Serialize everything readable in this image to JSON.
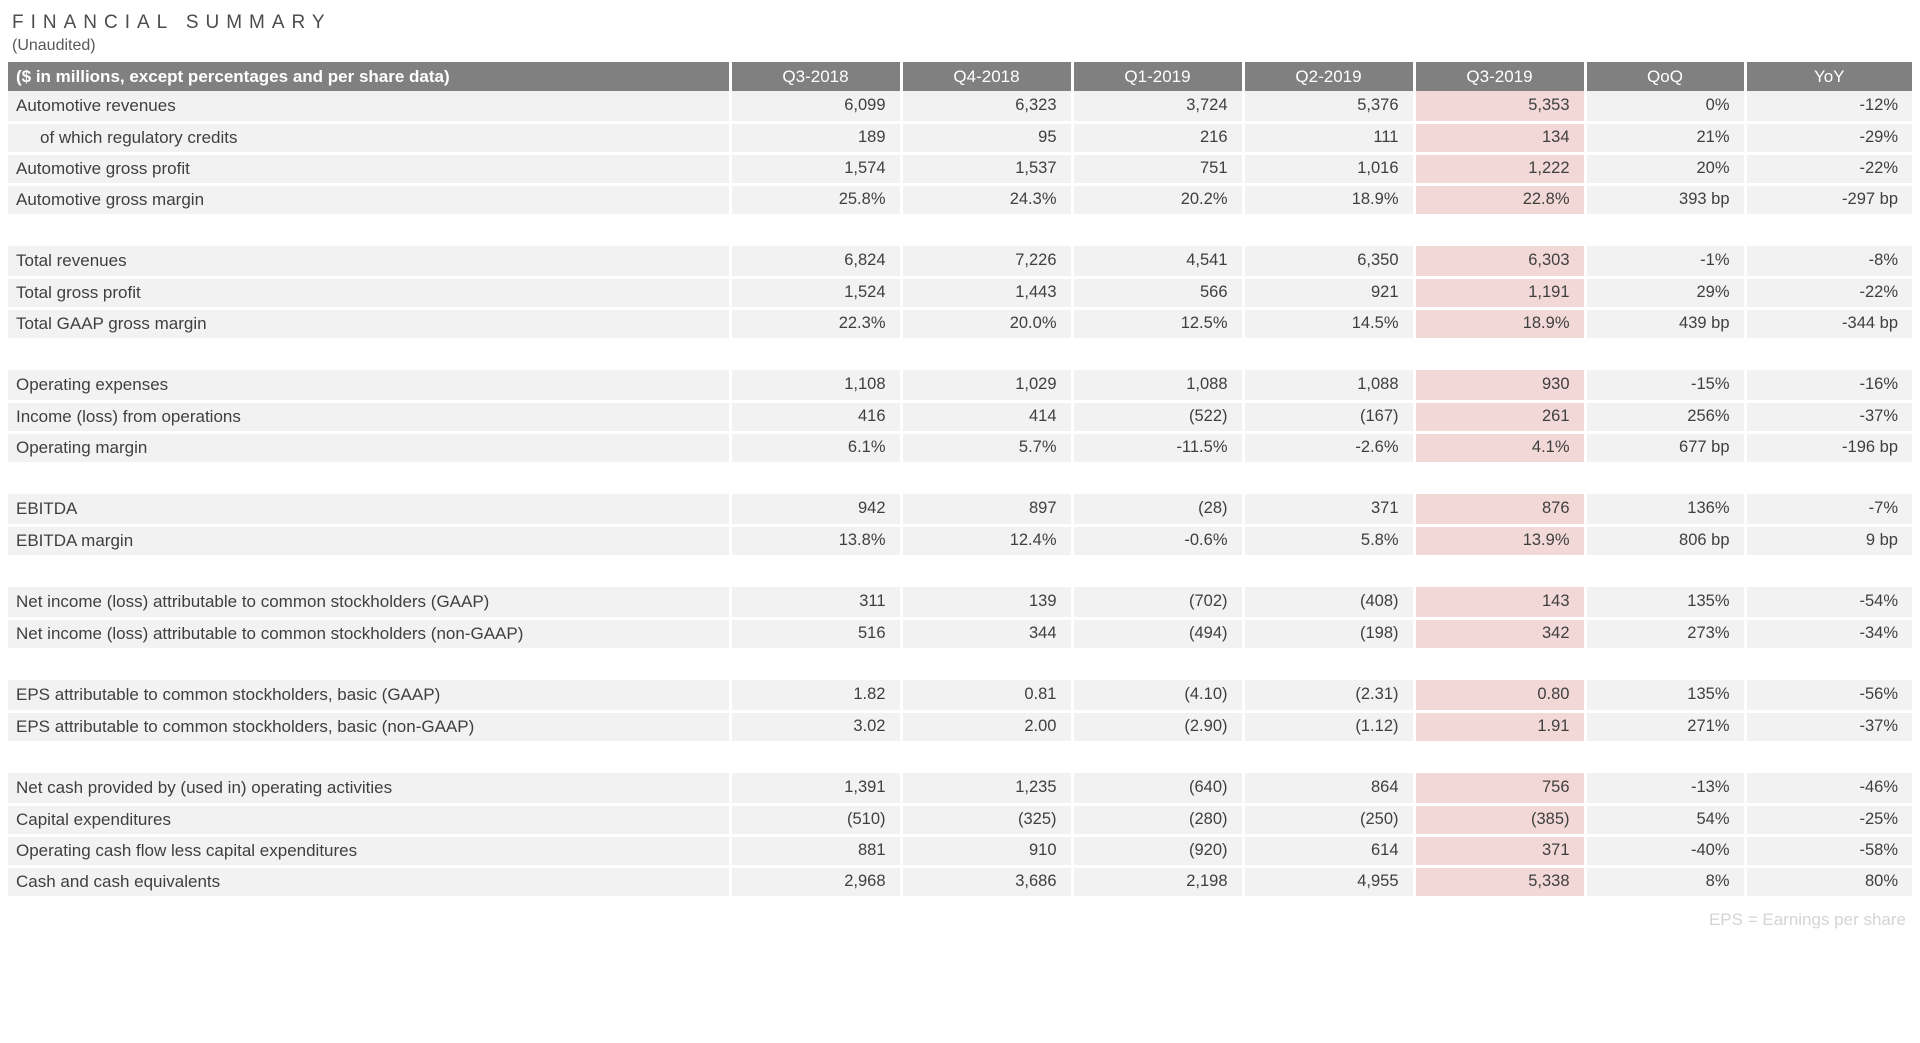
{
  "title": "FINANCIAL SUMMARY",
  "subtitle": "(Unaudited)",
  "footnote": "EPS = Earnings per share",
  "colors": {
    "header_bg": "#808080",
    "row_bg": "#f2f2f2",
    "highlight_bg": "#f2d9d7",
    "footnote_text": "#d4d4d4"
  },
  "table": {
    "columns": [
      "($ in millions, except percentages and per share data)",
      "Q3-2018",
      "Q4-2018",
      "Q1-2019",
      "Q2-2019",
      "Q3-2019",
      "QoQ",
      "YoY"
    ],
    "highlight_column": "Q3-2019",
    "highlight_index": 4,
    "sections": [
      {
        "rows": [
          {
            "label": "Automotive revenues",
            "indent": false,
            "values": [
              "6,099",
              "6,323",
              "3,724",
              "5,376",
              "5,353",
              "0%",
              "-12%"
            ]
          },
          {
            "label": "of which regulatory credits",
            "indent": true,
            "values": [
              "189",
              "95",
              "216",
              "111",
              "134",
              "21%",
              "-29%"
            ]
          },
          {
            "label": "Automotive gross profit",
            "indent": false,
            "values": [
              "1,574",
              "1,537",
              "751",
              "1,016",
              "1,222",
              "20%",
              "-22%"
            ]
          },
          {
            "label": "Automotive gross margin",
            "indent": false,
            "values": [
              "25.8%",
              "24.3%",
              "20.2%",
              "18.9%",
              "22.8%",
              "393 bp",
              "-297 bp"
            ]
          }
        ]
      },
      {
        "rows": [
          {
            "label": "Total revenues",
            "indent": false,
            "values": [
              "6,824",
              "7,226",
              "4,541",
              "6,350",
              "6,303",
              "-1%",
              "-8%"
            ]
          },
          {
            "label": "Total gross profit",
            "indent": false,
            "values": [
              "1,524",
              "1,443",
              "566",
              "921",
              "1,191",
              "29%",
              "-22%"
            ]
          },
          {
            "label": "Total GAAP gross margin",
            "indent": false,
            "values": [
              "22.3%",
              "20.0%",
              "12.5%",
              "14.5%",
              "18.9%",
              "439 bp",
              "-344 bp"
            ]
          }
        ]
      },
      {
        "rows": [
          {
            "label": "Operating expenses",
            "indent": false,
            "values": [
              "1,108",
              "1,029",
              "1,088",
              "1,088",
              "930",
              "-15%",
              "-16%"
            ]
          },
          {
            "label": "Income (loss) from operations",
            "indent": false,
            "values": [
              "416",
              "414",
              "(522)",
              "(167)",
              "261",
              "256%",
              "-37%"
            ]
          },
          {
            "label": "Operating margin",
            "indent": false,
            "values": [
              "6.1%",
              "5.7%",
              "-11.5%",
              "-2.6%",
              "4.1%",
              "677 bp",
              "-196 bp"
            ]
          }
        ]
      },
      {
        "rows": [
          {
            "label": "EBITDA",
            "indent": false,
            "values": [
              "942",
              "897",
              "(28)",
              "371",
              "876",
              "136%",
              "-7%"
            ]
          },
          {
            "label": "EBITDA margin",
            "indent": false,
            "values": [
              "13.8%",
              "12.4%",
              "-0.6%",
              "5.8%",
              "13.9%",
              "806 bp",
              "9 bp"
            ]
          }
        ]
      },
      {
        "rows": [
          {
            "label": "Net income (loss) attributable to common stockholders (GAAP)",
            "indent": false,
            "values": [
              "311",
              "139",
              "(702)",
              "(408)",
              "143",
              "135%",
              "-54%"
            ]
          },
          {
            "label": "Net income (loss) attributable to common stockholders (non-GAAP)",
            "indent": false,
            "values": [
              "516",
              "344",
              "(494)",
              "(198)",
              "342",
              "273%",
              "-34%"
            ]
          }
        ]
      },
      {
        "rows": [
          {
            "label": "EPS attributable to common stockholders, basic (GAAP)",
            "indent": false,
            "values": [
              "1.82",
              "0.81",
              "(4.10)",
              "(2.31)",
              "0.80",
              "135%",
              "-56%"
            ]
          },
          {
            "label": "EPS attributable to common stockholders, basic (non-GAAP)",
            "indent": false,
            "values": [
              "3.02",
              "2.00",
              "(2.90)",
              "(1.12)",
              "1.91",
              "271%",
              "-37%"
            ]
          }
        ]
      },
      {
        "rows": [
          {
            "label": "Net cash provided by (used in) operating activities",
            "indent": false,
            "values": [
              "1,391",
              "1,235",
              "(640)",
              "864",
              "756",
              "-13%",
              "-46%"
            ]
          },
          {
            "label": "Capital expenditures",
            "indent": false,
            "values": [
              "(510)",
              "(325)",
              "(280)",
              "(250)",
              "(385)",
              "54%",
              "-25%"
            ]
          },
          {
            "label": "Operating cash flow less capital expenditures",
            "indent": false,
            "values": [
              "881",
              "910",
              "(920)",
              "614",
              "371",
              "-40%",
              "-58%"
            ]
          },
          {
            "label": "Cash and cash equivalents",
            "indent": false,
            "values": [
              "2,968",
              "3,686",
              "2,198",
              "4,955",
              "5,338",
              "8%",
              "80%"
            ]
          }
        ]
      }
    ]
  }
}
